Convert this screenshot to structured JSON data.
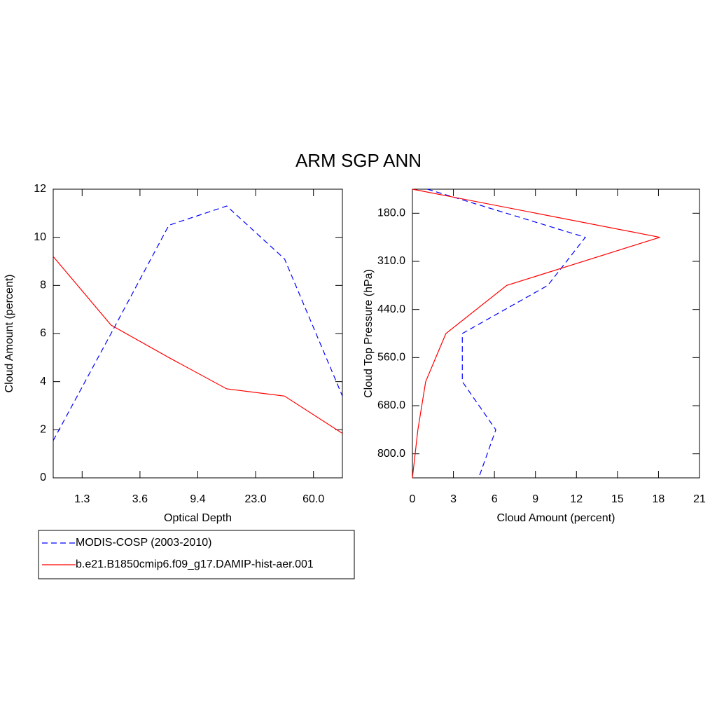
{
  "title": "ARM SGP ANN",
  "chart_data": [
    {
      "type": "line",
      "orientation": "vertical",
      "xlabel": "Optical Depth",
      "ylabel": "Cloud Amount (percent)",
      "x": [
        0,
        1,
        2,
        3,
        4,
        5
      ],
      "xlim": [
        0,
        5
      ],
      "xticks": [
        {
          "value": 0.5,
          "label": "1.3"
        },
        {
          "value": 1.5,
          "label": "3.6"
        },
        {
          "value": 2.5,
          "label": "9.4"
        },
        {
          "value": 3.5,
          "label": "23.0"
        },
        {
          "value": 4.5,
          "label": "60.0"
        }
      ],
      "ylim": [
        0,
        12
      ],
      "yticks": [
        0,
        2,
        4,
        6,
        8,
        10,
        12
      ],
      "series": [
        {
          "name": "MODIS-COSP (2003-2010)",
          "color": "#0000ff",
          "dash": true,
          "values": [
            1.55,
            6.0,
            10.5,
            11.3,
            9.1,
            3.4
          ]
        },
        {
          "name": "b.e21.B1850cmip6.f09_g17.DAMIP-hist-aer.001",
          "color": "#ff0000",
          "dash": false,
          "values": [
            9.2,
            6.35,
            5.0,
            3.7,
            3.4,
            1.85
          ]
        }
      ]
    },
    {
      "type": "line",
      "orientation": "horizontal",
      "xlabel": "Cloud Amount (percent)",
      "ylabel": "Cloud Top Pressure (hPa)",
      "xlim": [
        0,
        21
      ],
      "xticks": [
        0,
        3,
        6,
        9,
        12,
        15,
        18,
        21
      ],
      "y": [
        0,
        1,
        2,
        3,
        4,
        5,
        6
      ],
      "ylim": [
        0,
        6
      ],
      "y_inverted": true,
      "yticks": [
        {
          "value": 0.5,
          "label": "180.0"
        },
        {
          "value": 1.5,
          "label": "310.0"
        },
        {
          "value": 2.5,
          "label": "440.0"
        },
        {
          "value": 3.5,
          "label": "560.0"
        },
        {
          "value": 4.5,
          "label": "680.0"
        },
        {
          "value": 5.5,
          "label": "800.0"
        }
      ],
      "series": [
        {
          "name": "MODIS-COSP (2003-2010)",
          "color": "#0000ff",
          "dash": true,
          "values": [
            1.1,
            12.65,
            9.9,
            3.65,
            3.65,
            6.1,
            4.85
          ]
        },
        {
          "name": "b.e21.B1850cmip6.f09_g17.DAMIP-hist-aer.001",
          "color": "#ff0000",
          "dash": false,
          "values": [
            0,
            18.1,
            6.9,
            2.45,
            0.97,
            0.4,
            0
          ]
        }
      ]
    }
  ]
}
